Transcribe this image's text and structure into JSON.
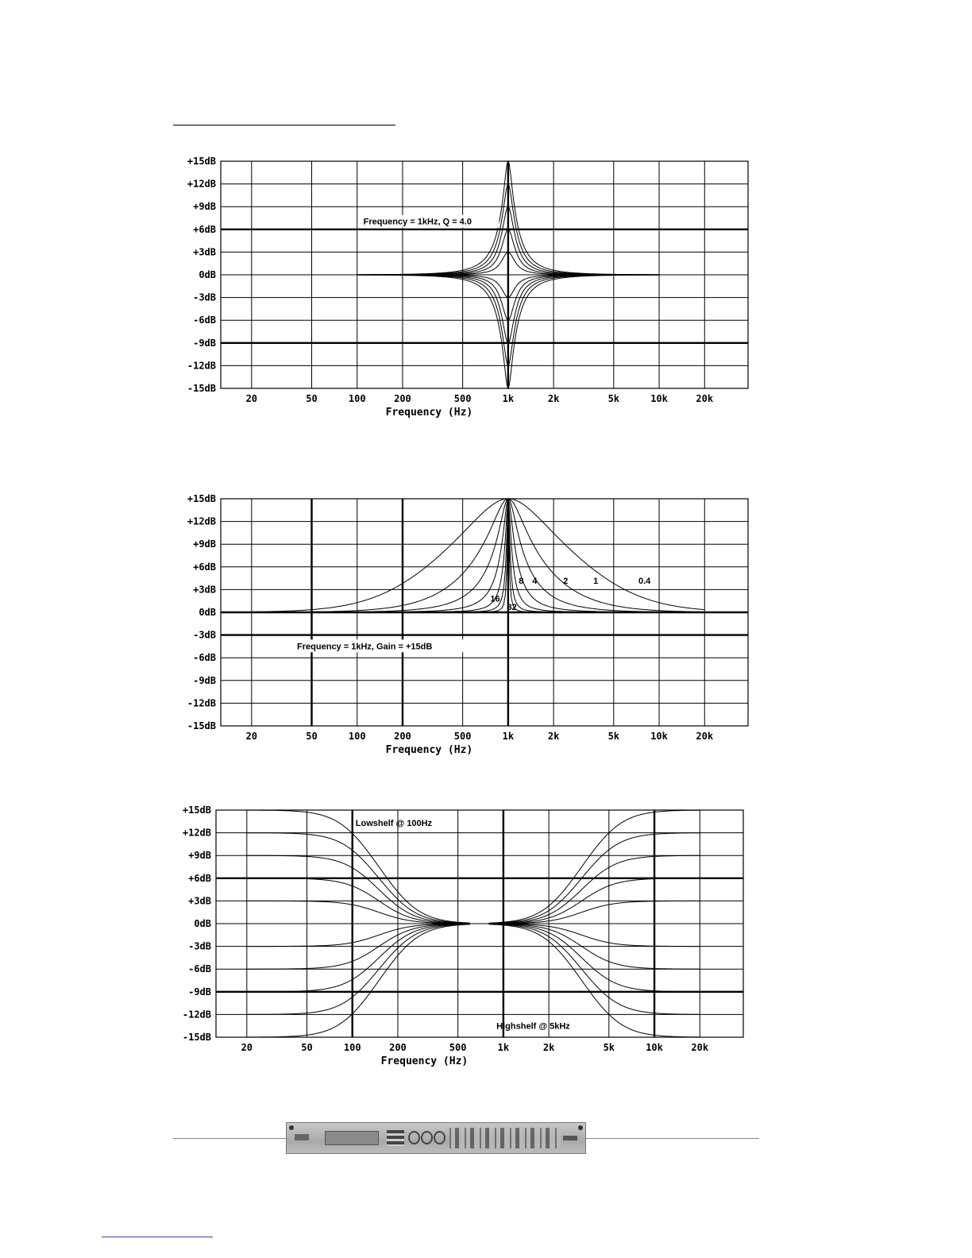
{
  "page": {
    "colors": {
      "ink": "#000000",
      "paper": "#ffffff",
      "panel": "#b5b5b5"
    }
  },
  "device_image": {
    "icon": "device-front-panel-image"
  },
  "chart_data": [
    {
      "type": "line",
      "title": "",
      "annotation": "Frequency = 1kHz,  Q = 4.0",
      "xlabel": "Frequency (Hz)",
      "ylabel": "",
      "xscale": "log",
      "xlim": [
        12.5,
        38800
      ],
      "ylim": [
        -15,
        15
      ],
      "xticks": [
        20,
        50,
        100,
        200,
        500,
        1000,
        2000,
        5000,
        10000,
        20000
      ],
      "xtick_labels": [
        "20",
        "50",
        "100",
        "200",
        "500",
        "1k",
        "2k",
        "5k",
        "10k",
        "20k"
      ],
      "yticks": [
        15,
        12,
        9,
        6,
        3,
        0,
        -3,
        -6,
        -9,
        -12,
        -15
      ],
      "ytick_labels": [
        "+15dB",
        "+12dB",
        "+9dB",
        "+6dB",
        "+3dB",
        "0dB",
        "-3dB",
        "-6dB",
        "-9dB",
        "-12dB",
        "-15dB"
      ],
      "grid": true,
      "bold_y": [
        6,
        -9
      ],
      "bold_x": [
        1000
      ],
      "filter": "peaking",
      "series": [
        {
          "name": "+15dB",
          "freq": 1000,
          "gain": 15,
          "q": 4.0,
          "x_range": [
            100,
            10000
          ]
        },
        {
          "name": "+12dB",
          "freq": 1000,
          "gain": 12,
          "q": 4.0,
          "x_range": [
            100,
            10000
          ]
        },
        {
          "name": "+9dB",
          "freq": 1000,
          "gain": 9,
          "q": 4.0,
          "x_range": [
            100,
            10000
          ]
        },
        {
          "name": "+6dB",
          "freq": 1000,
          "gain": 6,
          "q": 4.0,
          "x_range": [
            100,
            10000
          ]
        },
        {
          "name": "+3dB",
          "freq": 1000,
          "gain": 3,
          "q": 4.0,
          "x_range": [
            100,
            10000
          ]
        },
        {
          "name": "-3dB",
          "freq": 1000,
          "gain": -3,
          "q": 4.0,
          "x_range": [
            100,
            10000
          ]
        },
        {
          "name": "-6dB",
          "freq": 1000,
          "gain": -6,
          "q": 4.0,
          "x_range": [
            100,
            10000
          ]
        },
        {
          "name": "-9dB",
          "freq": 1000,
          "gain": -9,
          "q": 4.0,
          "x_range": [
            100,
            10000
          ]
        },
        {
          "name": "-12dB",
          "freq": 1000,
          "gain": -12,
          "q": 4.0,
          "x_range": [
            100,
            10000
          ]
        },
        {
          "name": "-15dB",
          "freq": 1000,
          "gain": -15,
          "q": 4.0,
          "x_range": [
            100,
            10000
          ]
        }
      ]
    },
    {
      "type": "line",
      "title": "",
      "annotation": "Frequency = 1kHz,  Gain = +15dB",
      "xlabel": "Frequency (Hz)",
      "ylabel": "",
      "xscale": "log",
      "xlim": [
        12.5,
        38800
      ],
      "ylim": [
        -15,
        15
      ],
      "xticks": [
        20,
        50,
        100,
        200,
        500,
        1000,
        2000,
        5000,
        10000,
        20000
      ],
      "xtick_labels": [
        "20",
        "50",
        "100",
        "200",
        "500",
        "1k",
        "2k",
        "5k",
        "10k",
        "20k"
      ],
      "yticks": [
        15,
        12,
        9,
        6,
        3,
        0,
        -3,
        -6,
        -9,
        -12,
        -15
      ],
      "ytick_labels": [
        "+15dB",
        "+12dB",
        "+9dB",
        "+6dB",
        "+3dB",
        "0dB",
        "-3dB",
        "-6dB",
        "-9dB",
        "-12dB",
        "-15dB"
      ],
      "grid": true,
      "bold_y": [
        0,
        -3
      ],
      "bold_x": [
        50,
        200,
        1000
      ],
      "filter": "peaking",
      "series": [
        {
          "name": "0.4",
          "freq": 1000,
          "gain": 15,
          "q": 0.4,
          "x_range": [
            20,
            20000
          ],
          "label_at": [
            8000,
            3.8
          ]
        },
        {
          "name": "1",
          "freq": 1000,
          "gain": 15,
          "q": 1,
          "x_range": [
            20,
            20000
          ],
          "label_at": [
            3800,
            3.8
          ]
        },
        {
          "name": "2",
          "freq": 1000,
          "gain": 15,
          "q": 2,
          "x_range": [
            20,
            20000
          ],
          "label_at": [
            2400,
            3.8
          ]
        },
        {
          "name": "4",
          "freq": 1000,
          "gain": 15,
          "q": 4,
          "x_range": [
            20,
            20000
          ],
          "label_at": [
            1500,
            3.8
          ]
        },
        {
          "name": "8",
          "freq": 1000,
          "gain": 15,
          "q": 8,
          "x_range": [
            20,
            20000
          ],
          "label_at": [
            1220,
            3.8
          ]
        },
        {
          "name": "16",
          "freq": 1000,
          "gain": 15,
          "q": 16,
          "x_range": [
            20,
            20000
          ],
          "label_at": [
            820,
            1.4
          ]
        },
        {
          "name": "32",
          "freq": 1000,
          "gain": 15,
          "q": 32,
          "x_range": [
            20,
            20000
          ],
          "label_at": [
            1060,
            0.3
          ]
        }
      ]
    },
    {
      "type": "line",
      "title": "",
      "annotations": [
        "Lowshelf    @ 100Hz",
        "Highshelf    @ 5kHz"
      ],
      "xlabel": "Frequency (Hz)",
      "ylabel": "",
      "xscale": "log",
      "xlim": [
        12.5,
        38800
      ],
      "ylim": [
        -15,
        15
      ],
      "xticks": [
        20,
        50,
        100,
        200,
        500,
        1000,
        2000,
        5000,
        10000,
        20000
      ],
      "xtick_labels": [
        "20",
        "50",
        "100",
        "200",
        "500",
        "1k",
        "2k",
        "5k",
        "10k",
        "20k"
      ],
      "yticks": [
        15,
        12,
        9,
        6,
        3,
        0,
        -3,
        -6,
        -9,
        -12,
        -15
      ],
      "ytick_labels": [
        "+15dB",
        "+12dB",
        "+9dB",
        "+6dB",
        "+3dB",
        "0dB",
        "-3dB",
        "-6dB",
        "-9dB",
        "-12dB",
        "-15dB"
      ],
      "grid": true,
      "bold_y": [
        6,
        -9
      ],
      "bold_x": [
        100,
        1000,
        10000
      ],
      "filter": "shelf",
      "series": [
        {
          "name": "Lowshelf +15dB",
          "kind": "low",
          "freq": 150,
          "gain": 15,
          "x_range": [
            20,
            600
          ]
        },
        {
          "name": "Lowshelf +12dB",
          "kind": "low",
          "freq": 150,
          "gain": 12,
          "x_range": [
            20,
            600
          ]
        },
        {
          "name": "Lowshelf +9dB",
          "kind": "low",
          "freq": 150,
          "gain": 9,
          "x_range": [
            20,
            600
          ]
        },
        {
          "name": "Lowshelf +6dB",
          "kind": "low",
          "freq": 150,
          "gain": 6,
          "x_range": [
            20,
            600
          ]
        },
        {
          "name": "Lowshelf +3dB",
          "kind": "low",
          "freq": 150,
          "gain": 3,
          "x_range": [
            20,
            600
          ]
        },
        {
          "name": "Lowshelf -3dB",
          "kind": "low",
          "freq": 150,
          "gain": -3,
          "x_range": [
            20,
            600
          ]
        },
        {
          "name": "Lowshelf -6dB",
          "kind": "low",
          "freq": 150,
          "gain": -6,
          "x_range": [
            20,
            600
          ]
        },
        {
          "name": "Lowshelf -9dB",
          "kind": "low",
          "freq": 150,
          "gain": -9,
          "x_range": [
            20,
            600
          ]
        },
        {
          "name": "Lowshelf -12dB",
          "kind": "low",
          "freq": 150,
          "gain": -12,
          "x_range": [
            20,
            600
          ]
        },
        {
          "name": "Lowshelf -15dB",
          "kind": "low",
          "freq": 150,
          "gain": -15,
          "x_range": [
            20,
            600
          ]
        },
        {
          "name": "Highshelf +15dB",
          "kind": "high",
          "freq": 3300,
          "gain": 15,
          "x_range": [
            800,
            20000
          ]
        },
        {
          "name": "Highshelf +12dB",
          "kind": "high",
          "freq": 3300,
          "gain": 12,
          "x_range": [
            800,
            20000
          ]
        },
        {
          "name": "Highshelf +9dB",
          "kind": "high",
          "freq": 3300,
          "gain": 9,
          "x_range": [
            800,
            20000
          ]
        },
        {
          "name": "Highshelf +6dB",
          "kind": "high",
          "freq": 3300,
          "gain": 6,
          "x_range": [
            800,
            20000
          ]
        },
        {
          "name": "Highshelf +3dB",
          "kind": "high",
          "freq": 3300,
          "gain": 3,
          "x_range": [
            800,
            20000
          ]
        },
        {
          "name": "Highshelf -3dB",
          "kind": "high",
          "freq": 3300,
          "gain": -3,
          "x_range": [
            800,
            20000
          ]
        },
        {
          "name": "Highshelf -6dB",
          "kind": "high",
          "freq": 3300,
          "gain": -6,
          "x_range": [
            800,
            20000
          ]
        },
        {
          "name": "Highshelf -9dB",
          "kind": "high",
          "freq": 3300,
          "gain": -9,
          "x_range": [
            800,
            20000
          ]
        },
        {
          "name": "Highshelf -12dB",
          "kind": "high",
          "freq": 3300,
          "gain": -12,
          "x_range": [
            800,
            20000
          ]
        },
        {
          "name": "Highshelf -15dB",
          "kind": "high",
          "freq": 3300,
          "gain": -15,
          "x_range": [
            800,
            20000
          ]
        }
      ]
    }
  ]
}
